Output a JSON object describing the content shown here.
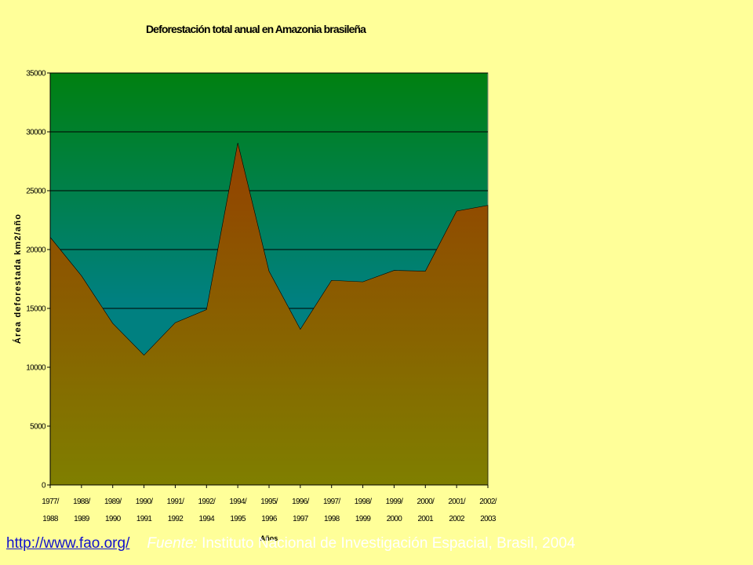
{
  "chart_data": {
    "type": "area",
    "title": "Deforestación total anual en Amazonia brasileña",
    "xlabel": "Años",
    "ylabel": "Área deforestada km2/año",
    "ylim": [
      0,
      35000
    ],
    "yticks": [
      0,
      5000,
      10000,
      15000,
      20000,
      25000,
      30000,
      35000
    ],
    "grid": true,
    "categories": [
      [
        "1977/",
        "1988"
      ],
      [
        "1988/",
        "1989"
      ],
      [
        "1989/",
        "1990"
      ],
      [
        "1990/",
        "1991"
      ],
      [
        "1991/",
        "1992"
      ],
      [
        "1992/",
        "1994"
      ],
      [
        "1994/",
        "1995"
      ],
      [
        "1995/",
        "1996"
      ],
      [
        "1996/",
        "1997"
      ],
      [
        "1997/",
        "1998"
      ],
      [
        "1998/",
        "1999"
      ],
      [
        "1999/",
        "2000"
      ],
      [
        "2000/",
        "2001"
      ],
      [
        "2001/",
        "2002"
      ],
      [
        "2002/",
        "2003"
      ]
    ],
    "values": [
      21050,
      17770,
      13730,
      11030,
      13786,
      14896,
      29059,
      18161,
      13227,
      17383,
      17259,
      18226,
      18165,
      23266,
      23750
    ],
    "colors": {
      "plot_top": "#008010",
      "plot_mid": "#008080",
      "area_top": "#944000",
      "area_bottom": "#7f7f00",
      "grid": "#000000"
    }
  },
  "footer": {
    "link": "http://www.fao.org/",
    "source_prefix": "Fuente:",
    "source_text": " Instituto Nacional de Investigación Espacial, Brasil, 2004"
  }
}
